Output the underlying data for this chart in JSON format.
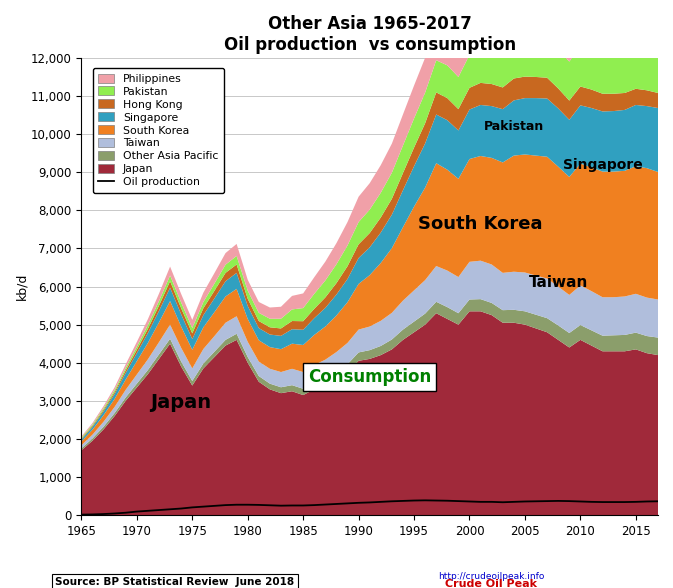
{
  "title_line1": "Other Asia 1965-2017",
  "title_line2": "Oil production  vs consumption",
  "ylabel": "kb/d",
  "ylim": [
    0,
    12000
  ],
  "yticks": [
    0,
    1000,
    2000,
    3000,
    4000,
    5000,
    6000,
    7000,
    8000,
    9000,
    10000,
    11000,
    12000
  ],
  "years": [
    1965,
    1966,
    1967,
    1968,
    1969,
    1970,
    1971,
    1972,
    1973,
    1974,
    1975,
    1976,
    1977,
    1978,
    1979,
    1980,
    1981,
    1982,
    1983,
    1984,
    1985,
    1986,
    1987,
    1988,
    1989,
    1990,
    1991,
    1992,
    1993,
    1994,
    1995,
    1996,
    1997,
    1998,
    1999,
    2000,
    2001,
    2002,
    2003,
    2004,
    2005,
    2006,
    2007,
    2008,
    2009,
    2010,
    2011,
    2012,
    2013,
    2014,
    2015,
    2016,
    2017
  ],
  "japan": [
    1700,
    1950,
    2250,
    2600,
    3000,
    3350,
    3700,
    4100,
    4500,
    3900,
    3400,
    3850,
    4150,
    4450,
    4600,
    4000,
    3500,
    3300,
    3200,
    3250,
    3150,
    3300,
    3400,
    3550,
    3750,
    4050,
    4100,
    4200,
    4350,
    4600,
    4800,
    5000,
    5300,
    5150,
    5000,
    5350,
    5350,
    5250,
    5050,
    5050,
    5000,
    4900,
    4800,
    4600,
    4400,
    4600,
    4450,
    4300,
    4300,
    4300,
    4350,
    4250,
    4200
  ],
  "other_asia_pacific": [
    50,
    60,
    70,
    80,
    90,
    100,
    110,
    120,
    130,
    130,
    120,
    130,
    140,
    150,
    160,
    150,
    150,
    150,
    155,
    160,
    165,
    180,
    190,
    200,
    210,
    220,
    230,
    240,
    260,
    270,
    280,
    290,
    300,
    310,
    300,
    310,
    320,
    320,
    330,
    340,
    350,
    360,
    370,
    380,
    380,
    390,
    400,
    410,
    420,
    430,
    440,
    450,
    460
  ],
  "taiwan": [
    80,
    100,
    130,
    160,
    200,
    240,
    280,
    320,
    370,
    360,
    330,
    380,
    410,
    450,
    460,
    400,
    380,
    390,
    400,
    430,
    440,
    460,
    490,
    530,
    560,
    600,
    620,
    660,
    700,
    760,
    820,
    880,
    940,
    960,
    950,
    990,
    1010,
    1010,
    980,
    1000,
    1020,
    1030,
    1040,
    1020,
    1000,
    1040,
    1030,
    1010,
    1000,
    1010,
    1020,
    1010,
    1000
  ],
  "south_korea": [
    100,
    130,
    170,
    210,
    270,
    350,
    430,
    520,
    620,
    560,
    490,
    570,
    630,
    690,
    720,
    600,
    560,
    570,
    600,
    660,
    710,
    790,
    870,
    960,
    1070,
    1200,
    1350,
    1520,
    1700,
    1930,
    2200,
    2430,
    2700,
    2650,
    2580,
    2700,
    2750,
    2800,
    2900,
    3050,
    3100,
    3150,
    3200,
    3150,
    3100,
    3200,
    3250,
    3300,
    3300,
    3300,
    3350,
    3400,
    3350
  ],
  "singapore": [
    50,
    70,
    100,
    130,
    170,
    210,
    260,
    300,
    350,
    320,
    280,
    320,
    360,
    400,
    420,
    340,
    320,
    330,
    350,
    380,
    400,
    440,
    490,
    550,
    610,
    680,
    730,
    800,
    880,
    970,
    1060,
    1160,
    1280,
    1300,
    1270,
    1300,
    1340,
    1360,
    1400,
    1450,
    1480,
    1510,
    1530,
    1530,
    1500,
    1530,
    1560,
    1580,
    1590,
    1600,
    1610,
    1630,
    1680
  ],
  "hong_kong": [
    20,
    30,
    40,
    50,
    70,
    90,
    110,
    140,
    170,
    160,
    150,
    180,
    200,
    220,
    220,
    190,
    185,
    190,
    195,
    215,
    225,
    245,
    275,
    300,
    335,
    360,
    375,
    395,
    415,
    450,
    490,
    530,
    580,
    580,
    560,
    570,
    580,
    580,
    570,
    575,
    565,
    555,
    545,
    525,
    505,
    495,
    485,
    465,
    455,
    445,
    425,
    415,
    395
  ],
  "pakistan": [
    30,
    35,
    45,
    55,
    65,
    80,
    100,
    120,
    150,
    150,
    140,
    165,
    190,
    215,
    225,
    215,
    215,
    225,
    255,
    305,
    345,
    395,
    445,
    495,
    545,
    585,
    615,
    650,
    685,
    725,
    765,
    805,
    845,
    860,
    845,
    865,
    885,
    895,
    905,
    925,
    945,
    965,
    985,
    1005,
    1025,
    1055,
    1065,
    1075,
    1095,
    1125,
    1145,
    1175,
    1205
  ],
  "philippines": [
    30,
    40,
    55,
    70,
    95,
    125,
    155,
    195,
    235,
    225,
    215,
    245,
    275,
    305,
    315,
    285,
    285,
    295,
    315,
    355,
    385,
    435,
    495,
    555,
    615,
    665,
    695,
    725,
    765,
    815,
    865,
    915,
    965,
    965,
    925,
    945,
    955,
    945,
    925,
    925,
    915,
    905,
    895,
    875,
    865,
    905,
    935,
    975,
    1005,
    1035,
    1075,
    1105,
    1155
  ],
  "oil_production": [
    10,
    15,
    25,
    40,
    60,
    90,
    110,
    130,
    150,
    170,
    200,
    220,
    240,
    260,
    270,
    270,
    265,
    255,
    245,
    250,
    250,
    260,
    275,
    290,
    305,
    320,
    330,
    345,
    360,
    370,
    380,
    385,
    380,
    375,
    365,
    355,
    345,
    345,
    335,
    345,
    355,
    360,
    365,
    370,
    365,
    355,
    345,
    340,
    340,
    340,
    345,
    355,
    360
  ],
  "colors": {
    "japan": "#A0293A",
    "other_asia_pacific": "#8B9E6B",
    "taiwan": "#B0BEDC",
    "south_korea": "#F08020",
    "singapore": "#30A0C0",
    "hong_kong": "#C86820",
    "pakistan": "#90EE50",
    "philippines": "#F0A0A8"
  },
  "source_text": "Source: BP Statistical Review  June 2018",
  "bg_color": "#FFFFFF"
}
